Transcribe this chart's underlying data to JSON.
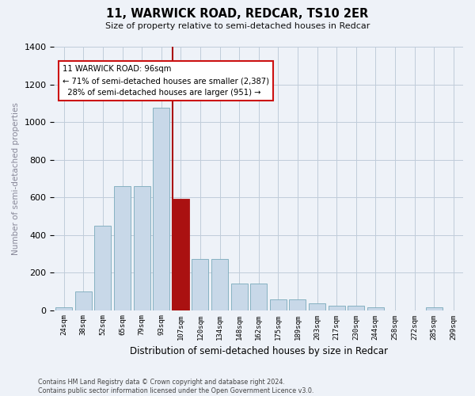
{
  "title": "11, WARWICK ROAD, REDCAR, TS10 2ER",
  "subtitle": "Size of property relative to semi-detached houses in Redcar",
  "xlabel": "Distribution of semi-detached houses by size in Redcar",
  "ylabel": "Number of semi-detached properties",
  "categories": [
    "24sqm",
    "38sqm",
    "52sqm",
    "65sqm",
    "79sqm",
    "93sqm",
    "107sqm",
    "120sqm",
    "134sqm",
    "148sqm",
    "162sqm",
    "175sqm",
    "189sqm",
    "203sqm",
    "217sqm",
    "230sqm",
    "244sqm",
    "258sqm",
    "272sqm",
    "285sqm",
    "299sqm"
  ],
  "values": [
    15,
    100,
    450,
    660,
    660,
    1075,
    590,
    270,
    270,
    140,
    140,
    55,
    55,
    35,
    22,
    22,
    15,
    0,
    0,
    15,
    0
  ],
  "bar_color": "#c8d8e8",
  "bar_edge_color": "#7aaabb",
  "highlight_index": 6,
  "highlight_color": "#aa1111",
  "property_label": "11 WARWICK ROAD: 96sqm",
  "pct_smaller": 71,
  "count_smaller": 2387,
  "pct_larger": 28,
  "count_larger": 951,
  "ylim": [
    0,
    1400
  ],
  "background_color": "#eef2f8",
  "grid_color": "#c0ccda",
  "footer_text": "Contains HM Land Registry data © Crown copyright and database right 2024.\nContains public sector information licensed under the Open Government Licence v3.0."
}
